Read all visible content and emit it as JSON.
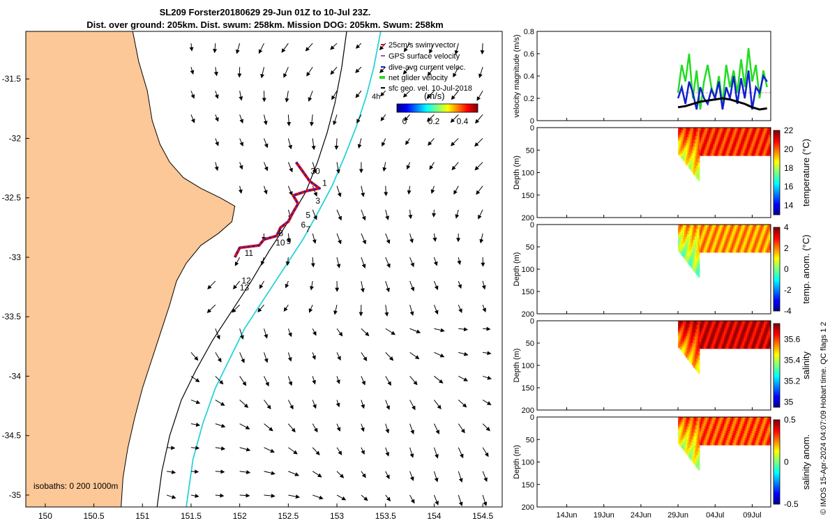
{
  "title_line1": "SL209 Forster20180629 29-Jun 01Z to 10-Jul 23Z.",
  "title_line2": "Dist. over ground: 205km. Dist. swum: 258km. Mission DOG: 205km. Swum: 258km",
  "credit": "© IMOS 15-Apr-2024 04:07:09 Hobart time. QC flags 1  2",
  "colors": {
    "land": "#fcc897",
    "coast": "#000000",
    "isobath_cyan": "#28d2dc",
    "track_red": "#e01010",
    "track_blue": "#1020d0",
    "green": "#22dd22",
    "black": "#000000"
  },
  "map": {
    "type": "map",
    "xlim": [
      149.8,
      154.7
    ],
    "ylim": [
      -35.1,
      -31.1
    ],
    "x_ticks": [
      150,
      150.5,
      151,
      151.5,
      152,
      152.5,
      153,
      153.5,
      154,
      154.5
    ],
    "x_tick_labels": [
      "150",
      "150.5",
      "151",
      "151.5",
      "152",
      "152.5",
      "153",
      "153.5",
      "154",
      "154.5"
    ],
    "y_ticks": [
      -31.5,
      -32,
      -32.5,
      -33,
      -33.5,
      -34,
      -34.5,
      -35
    ],
    "y_tick_labels": [
      "-31.5",
      "-32",
      "-32.5",
      "-33",
      "-33.5",
      "-34",
      "-34.5",
      "-35"
    ],
    "legend": [
      {
        "label": "25cm/s swim vector",
        "color": "#e01010"
      },
      {
        "label": "GPS surface velocity",
        "color": "#c040c0"
      },
      {
        "label": "dive-avg current veloc.",
        "color": "#1020d0"
      },
      {
        "label": "net glider velocity",
        "color": "#22dd22"
      },
      {
        "label": "sfc geo. vel. 10-Jul-2018",
        "color": "#000000"
      }
    ],
    "legend_extra": "4h",
    "colorbar": {
      "label": "(m/s)",
      "tick_labels": [
        "0",
        "0.2",
        "0.4"
      ],
      "range": [
        0,
        0.5
      ]
    },
    "isobath_label": "isobaths: 0   200   1000m",
    "coast": [
      [
        150.9,
        -31.1
      ],
      [
        150.96,
        -31.35
      ],
      [
        151.05,
        -31.6
      ],
      [
        151.1,
        -31.85
      ],
      [
        151.18,
        -32.05
      ],
      [
        151.28,
        -32.2
      ],
      [
        151.42,
        -32.33
      ],
      [
        151.6,
        -32.42
      ],
      [
        151.8,
        -32.5
      ],
      [
        151.95,
        -32.57
      ],
      [
        151.92,
        -32.7
      ],
      [
        151.78,
        -32.8
      ],
      [
        151.6,
        -32.9
      ],
      [
        151.45,
        -33.05
      ],
      [
        151.35,
        -33.2
      ],
      [
        151.28,
        -33.4
      ],
      [
        151.2,
        -33.6
      ],
      [
        151.1,
        -33.85
      ],
      [
        151.0,
        -34.1
      ],
      [
        150.92,
        -34.35
      ],
      [
        150.85,
        -34.6
      ],
      [
        150.8,
        -34.85
      ],
      [
        150.78,
        -35.1
      ]
    ],
    "isobath_black": [
      [
        153.1,
        -31.1
      ],
      [
        153.05,
        -31.4
      ],
      [
        152.98,
        -31.7
      ],
      [
        152.9,
        -31.95
      ],
      [
        152.8,
        -32.2
      ],
      [
        152.68,
        -32.45
      ],
      [
        152.5,
        -32.7
      ],
      [
        152.3,
        -32.95
      ],
      [
        152.12,
        -33.2
      ],
      [
        151.92,
        -33.45
      ],
      [
        151.72,
        -33.7
      ],
      [
        151.55,
        -33.95
      ],
      [
        151.4,
        -34.2
      ],
      [
        151.28,
        -34.5
      ],
      [
        151.2,
        -34.8
      ],
      [
        151.15,
        -35.1
      ]
    ],
    "isobath_cyan": [
      [
        153.45,
        -31.1
      ],
      [
        153.38,
        -31.4
      ],
      [
        153.3,
        -31.65
      ],
      [
        153.2,
        -31.9
      ],
      [
        153.08,
        -32.15
      ],
      [
        152.95,
        -32.4
      ],
      [
        152.82,
        -32.6
      ],
      [
        152.65,
        -32.85
      ],
      [
        152.45,
        -33.1
      ],
      [
        152.25,
        -33.35
      ],
      [
        152.05,
        -33.6
      ],
      [
        151.9,
        -33.85
      ],
      [
        151.75,
        -34.1
      ],
      [
        151.62,
        -34.4
      ],
      [
        151.52,
        -34.7
      ],
      [
        151.45,
        -35.1
      ]
    ],
    "track": [
      [
        152.58,
        -32.2
      ],
      [
        152.65,
        -32.28
      ],
      [
        152.72,
        -32.36
      ],
      [
        152.82,
        -32.42
      ],
      [
        152.7,
        -32.44
      ],
      [
        152.55,
        -32.48
      ],
      [
        152.6,
        -32.55
      ],
      [
        152.55,
        -32.62
      ],
      [
        152.5,
        -32.7
      ],
      [
        152.42,
        -32.75
      ],
      [
        152.38,
        -32.82
      ],
      [
        152.25,
        -32.85
      ],
      [
        152.2,
        -32.9
      ],
      [
        152.0,
        -32.92
      ],
      [
        151.95,
        -33.0
      ]
    ],
    "day_labels": [
      {
        "t": "30",
        "x": 152.73,
        "y": -32.3
      },
      {
        "t": "1",
        "x": 152.85,
        "y": -32.4
      },
      {
        "t": "3",
        "x": 152.78,
        "y": -32.55
      },
      {
        "t": "5",
        "x": 152.68,
        "y": -32.67
      },
      {
        "t": "6",
        "x": 152.63,
        "y": -32.75
      },
      {
        "t": "7",
        "x": 152.68,
        "y": -32.79
      },
      {
        "t": "8",
        "x": 152.4,
        "y": -32.82
      },
      {
        "t": "9",
        "x": 152.48,
        "y": -32.89
      },
      {
        "t": "10",
        "x": 152.37,
        "y": -32.9
      },
      {
        "t": "11",
        "x": 152.05,
        "y": -32.99
      },
      {
        "t": "12",
        "x": 152.02,
        "y": -33.22
      },
      {
        "t": "13",
        "x": 152.0,
        "y": -33.28
      }
    ]
  },
  "chart_data": [
    {
      "type": "line",
      "ylabel": "velocity magnitude (m/s)",
      "ylim": [
        0,
        0.8
      ],
      "y_tick_labels": [
        "0",
        "0.2",
        "0.4",
        "0.6",
        "0.8"
      ],
      "series": [
        {
          "color": "#22dd22",
          "x": [
            29.0,
            29.5,
            30.0,
            30.5,
            31.0,
            31.5,
            32.0,
            32.5,
            33.0,
            33.5,
            34.0,
            34.5,
            35.0,
            35.5,
            36.0,
            36.5,
            37.0,
            37.5,
            38.0,
            38.5,
            39.0,
            39.5,
            40.0,
            40.5,
            41.0
          ],
          "values": [
            0.25,
            0.5,
            0.35,
            0.6,
            0.2,
            0.45,
            0.1,
            0.35,
            0.5,
            0.3,
            0.2,
            0.4,
            0.15,
            0.5,
            0.3,
            0.45,
            0.25,
            0.55,
            0.3,
            0.65,
            0.35,
            0.5,
            0.2,
            0.45,
            0.3
          ]
        },
        {
          "color": "#1020d0",
          "x": [
            29.0,
            29.5,
            30.0,
            30.5,
            31.0,
            31.5,
            32.0,
            32.5,
            33.0,
            33.5,
            34.0,
            34.5,
            35.0,
            35.5,
            36.0,
            36.5,
            37.0,
            37.5,
            38.0,
            38.5,
            39.0,
            39.5,
            40.0,
            40.5,
            41.0
          ],
          "values": [
            0.2,
            0.3,
            0.15,
            0.35,
            0.25,
            0.1,
            0.3,
            0.2,
            0.15,
            0.28,
            0.2,
            0.35,
            0.1,
            0.3,
            0.2,
            0.4,
            0.15,
            0.38,
            0.2,
            0.45,
            0.1,
            0.3,
            0.25,
            0.4,
            0.35
          ]
        },
        {
          "color": "#000000",
          "x": [
            29.0,
            30.0,
            31.0,
            32.0,
            33.0,
            34.0,
            35.0,
            36.0,
            37.0,
            38.0,
            39.0,
            40.0,
            41.0
          ],
          "values": [
            0.12,
            0.13,
            0.15,
            0.17,
            0.18,
            0.19,
            0.2,
            0.19,
            0.17,
            0.15,
            0.12,
            0.1,
            0.11
          ]
        }
      ]
    },
    {
      "type": "heatmap",
      "ylabel": "Depth (m)",
      "cbar_label": "temperature (°C)",
      "clim": [
        13,
        22
      ],
      "cbar_tick_labels": [
        "14",
        "16",
        "18",
        "20",
        "22"
      ],
      "cbar_ticks": [
        14,
        16,
        18,
        20,
        22
      ],
      "mean": 20.5
    },
    {
      "type": "heatmap",
      "ylabel": "Depth (m)",
      "cbar_label": "temp. anom. (°C)",
      "clim": [
        -4,
        4
      ],
      "cbar_tick_labels": [
        "-4",
        "-2",
        "0",
        "2",
        "4"
      ],
      "cbar_ticks": [
        -4,
        -2,
        0,
        2,
        4
      ],
      "mean": 1.8
    },
    {
      "type": "heatmap",
      "ylabel": "Depth (m)",
      "cbar_label": "salinity",
      "clim": [
        34.95,
        35.75
      ],
      "cbar_tick_labels": [
        "35",
        "35.2",
        "35.4",
        "35.6"
      ],
      "cbar_ticks": [
        35,
        35.2,
        35.4,
        35.6
      ],
      "mean": 35.68
    },
    {
      "type": "heatmap",
      "ylabel": "Depth (m)",
      "cbar_label": "salinity anom.",
      "clim": [
        -0.5,
        0.5
      ],
      "cbar_tick_labels": [
        "-0.5",
        "0",
        "0.5"
      ],
      "cbar_ticks": [
        -0.5,
        0,
        0.5
      ],
      "mean": 0.3
    }
  ],
  "time_axis": {
    "xlim": [
      10,
      41.5
    ],
    "x_ticks": [
      14,
      19,
      24,
      29,
      34,
      39
    ],
    "x_tick_labels": [
      "14Jun",
      "19Jun",
      "24Jun",
      "29Jun",
      "04Jul",
      "09Jul"
    ]
  },
  "depth_axis": {
    "ylim": [
      0,
      200
    ],
    "y_ticks": [
      0,
      50,
      100,
      150,
      200
    ],
    "y_tick_labels": [
      "0",
      "50",
      "100",
      "150",
      "200"
    ]
  }
}
